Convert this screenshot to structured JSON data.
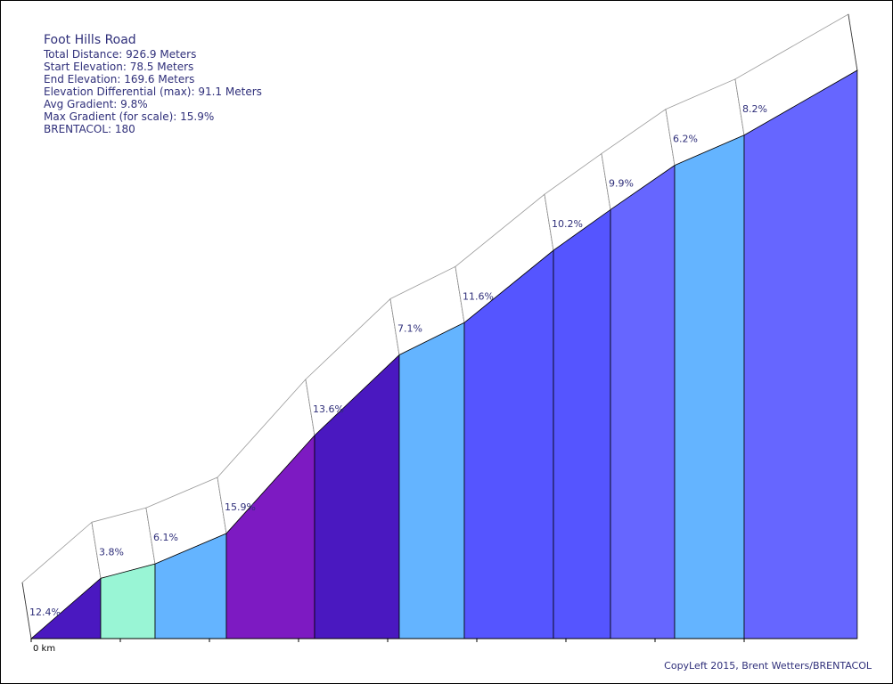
{
  "info": {
    "title": "Foot Hills Road",
    "lines": [
      "Total Distance: 926.9 Meters",
      "Start Elevation: 78.5 Meters",
      "End Elevation: 169.6 Meters",
      "Elevation Differential (max): 91.1 Meters",
      "Avg Gradient: 9.8%",
      "Max Gradient (for scale): 15.9%",
      "BRENTACOL: 180"
    ]
  },
  "credit": "CopyLeft 2015, Brent Wetters/BRENTACOL",
  "chart_data": {
    "type": "area",
    "title": "Foot Hills Road",
    "xlabel": "",
    "ylabel": "",
    "x_unit": "km",
    "x_tick_labels": [
      "0 km"
    ],
    "x_ticks_km": [
      0,
      0.1,
      0.2,
      0.3,
      0.4,
      0.5,
      0.6,
      0.7,
      0.8
    ],
    "x_range_km": [
      0,
      0.9269
    ],
    "elevation_range_m": [
      78.5,
      169.6
    ],
    "segments": [
      {
        "label": "12.4%",
        "gradient": 12.4,
        "start_km": 0.0,
        "end_km": 0.078,
        "color": "#4a18c0"
      },
      {
        "label": "3.8%",
        "gradient": 3.8,
        "start_km": 0.078,
        "end_km": 0.139,
        "color": "#99f5d5"
      },
      {
        "label": "6.1%",
        "gradient": 6.1,
        "start_km": 0.139,
        "end_km": 0.219,
        "color": "#64b4ff"
      },
      {
        "label": "15.9%",
        "gradient": 15.9,
        "start_km": 0.219,
        "end_km": 0.318,
        "color": "#7d1ac2"
      },
      {
        "label": "13.6%",
        "gradient": 13.6,
        "start_km": 0.318,
        "end_km": 0.413,
        "color": "#4a18c0"
      },
      {
        "label": "7.1%",
        "gradient": 7.1,
        "start_km": 0.413,
        "end_km": 0.486,
        "color": "#64b4ff"
      },
      {
        "label": "11.6%",
        "gradient": 11.6,
        "start_km": 0.486,
        "end_km": 0.586,
        "color": "#5555ff"
      },
      {
        "label": "10.2%",
        "gradient": 10.2,
        "start_km": 0.586,
        "end_km": 0.65,
        "color": "#5555ff"
      },
      {
        "label": "9.9%",
        "gradient": 9.9,
        "start_km": 0.65,
        "end_km": 0.722,
        "color": "#6666ff"
      },
      {
        "label": "6.2%",
        "gradient": 6.2,
        "start_km": 0.722,
        "end_km": 0.8,
        "color": "#64b4ff"
      },
      {
        "label": "8.2%",
        "gradient": 8.2,
        "start_km": 0.8,
        "end_km": 0.9269,
        "color": "#6666ff"
      }
    ]
  }
}
